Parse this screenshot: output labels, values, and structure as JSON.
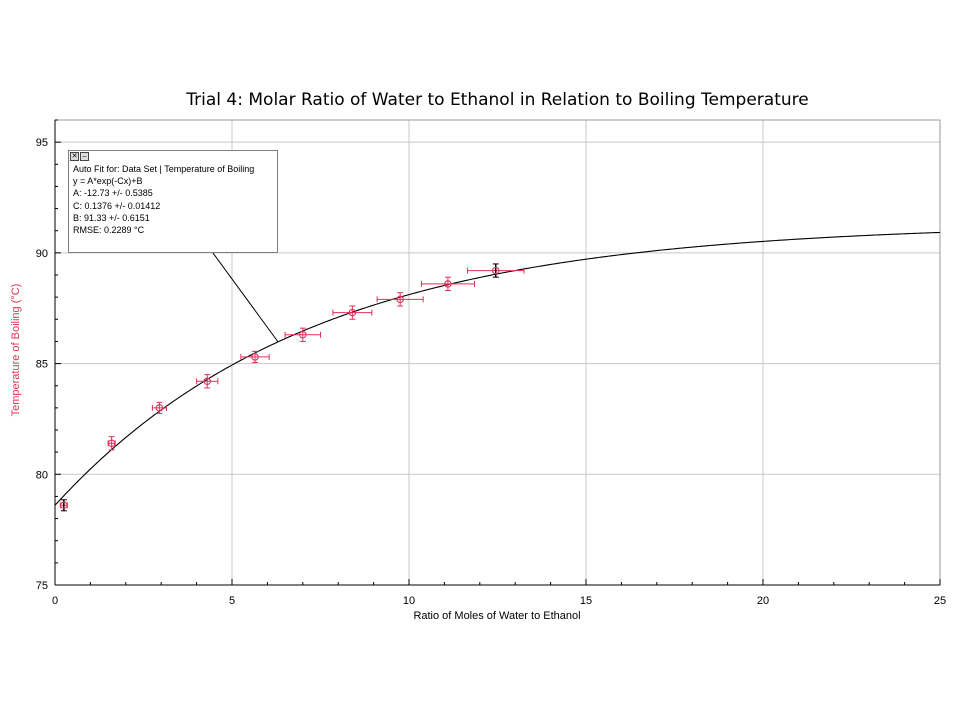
{
  "chart_data": {
    "type": "scatter",
    "title": "Trial 4: Molar Ratio of Water to Ethanol in Relation to Boiling Temperature",
    "xlabel": "Ratio of Moles of Water to Ethanol",
    "ylabel": "Temperature of Boiling (°C)",
    "xlim": [
      0,
      25
    ],
    "ylim": [
      75,
      96
    ],
    "x_ticks": [
      0,
      5,
      10,
      15,
      20,
      25
    ],
    "y_ticks": [
      75,
      80,
      85,
      90,
      95
    ],
    "grid": true,
    "series": [
      {
        "points": [
          {
            "x": 0.25,
            "y": 78.6,
            "x_err": 0.1,
            "y_err": 0.25
          },
          {
            "x": 1.6,
            "y": 81.4,
            "x_err": 0.1,
            "y_err": 0.3
          },
          {
            "x": 2.95,
            "y": 83.0,
            "x_err": 0.2,
            "y_err": 0.25
          },
          {
            "x": 4.3,
            "y": 84.2,
            "x_err": 0.3,
            "y_err": 0.3
          },
          {
            "x": 5.65,
            "y": 85.3,
            "x_err": 0.4,
            "y_err": 0.25
          },
          {
            "x": 7.0,
            "y": 86.3,
            "x_err": 0.5,
            "y_err": 0.3
          },
          {
            "x": 8.4,
            "y": 87.3,
            "x_err": 0.55,
            "y_err": 0.3
          },
          {
            "x": 9.75,
            "y": 87.9,
            "x_err": 0.65,
            "y_err": 0.3
          },
          {
            "x": 11.1,
            "y": 88.6,
            "x_err": 0.75,
            "y_err": 0.3
          },
          {
            "x": 12.45,
            "y": 89.2,
            "x_err": 0.8,
            "y_err": 0.3
          }
        ],
        "color": "#e0325a"
      }
    ],
    "fit": {
      "equation": "y = A*exp(-Cx)+B",
      "A": -12.73,
      "C": 0.1376,
      "B": 91.33,
      "color": "#000000"
    }
  },
  "fit_box": {
    "title": "Auto Fit for: Data Set | Temperature of Boiling",
    "equation": "y = A*exp(-Cx)+B",
    "a_line": "A: -12.73 +/- 0.5385",
    "c_line": "C: 0.1376 +/- 0.01412",
    "b_line": "B: 91.33 +/- 0.6151",
    "rmse_line": "RMSE: 0.2289 °C",
    "close_icon": "close-icon",
    "minimize_icon": "minimize-icon"
  },
  "colors": {
    "ylabel": "#e0325a",
    "grid": "#c8c8c8",
    "axis": "#000000"
  }
}
